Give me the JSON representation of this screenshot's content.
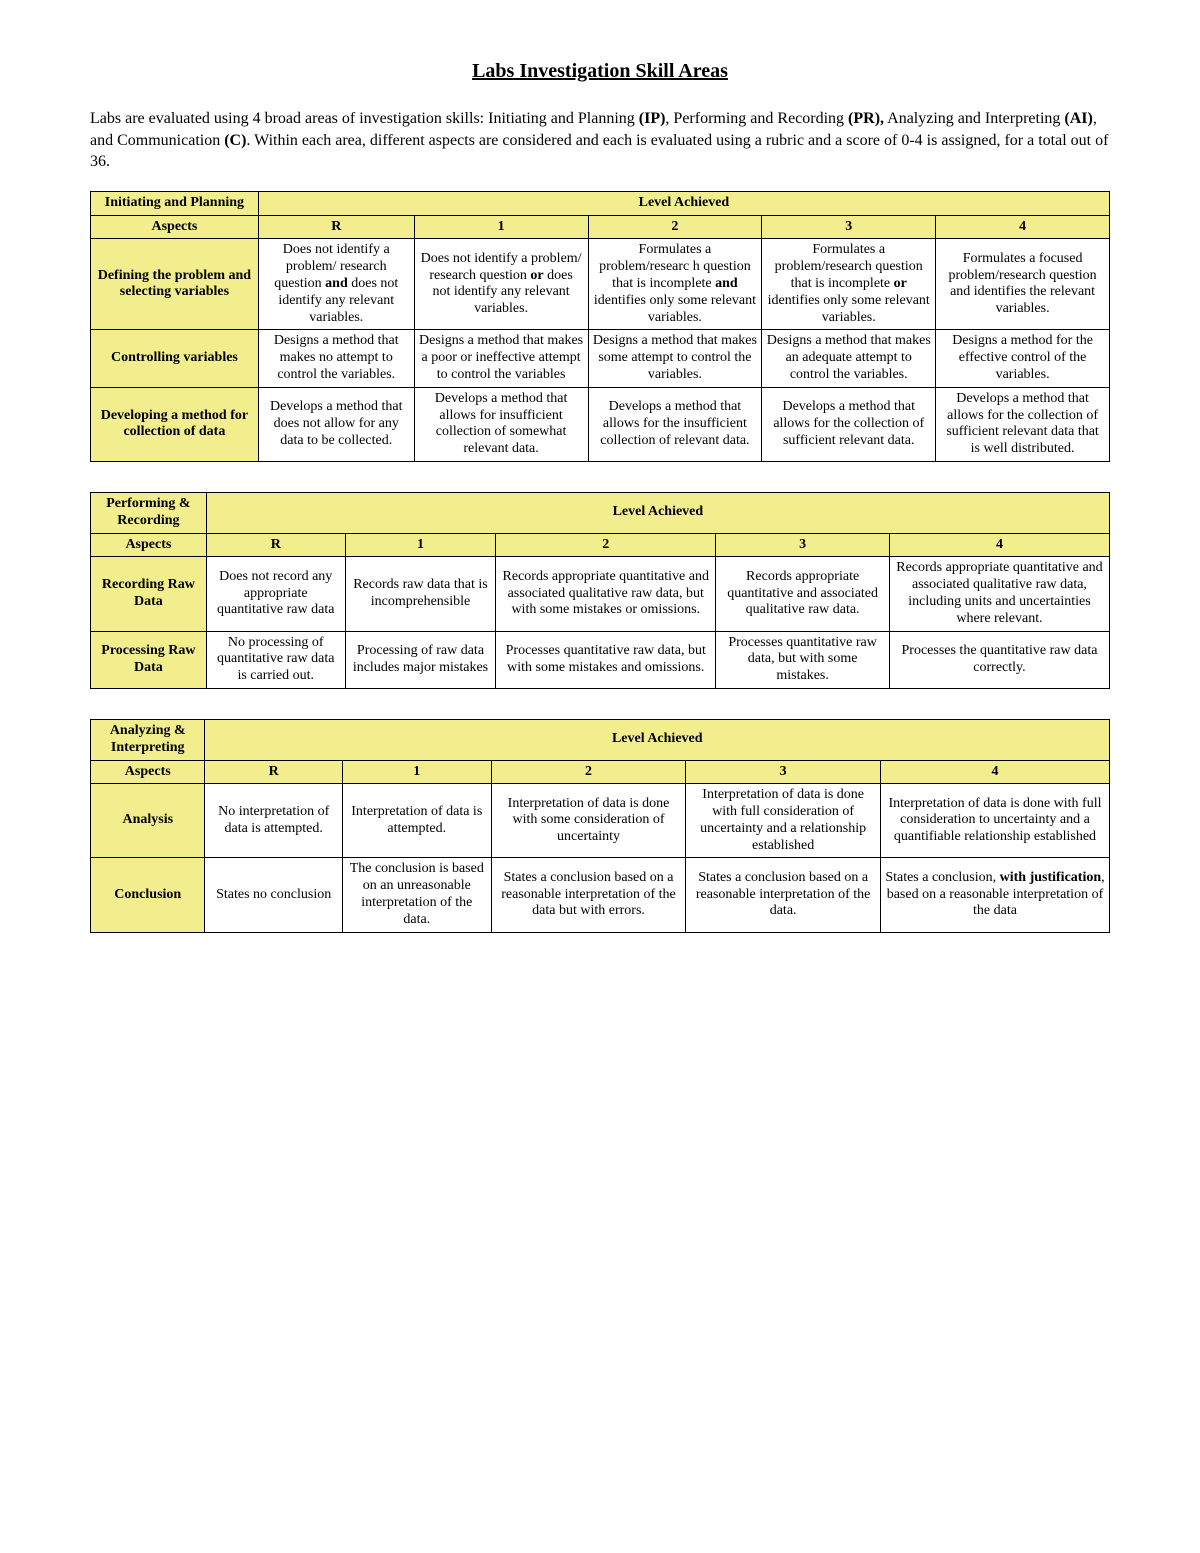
{
  "title": "Labs Investigation Skill Areas",
  "intro_html": "Labs are evaluated using 4 broad areas of investigation skills: Initiating and Planning <b>(IP)</b>, Performing and Recording <b>(PR),</b> Analyzing and Interpreting <b>(AI)</b>, and Communication <b>(C)</b>. Within each area, different aspects are considered and each is evaluated using a rubric and a score of 0-4 is assigned, for a total out of 36.",
  "colors": {
    "header_bg": "#f2ee8d",
    "border": "#000000",
    "page_bg": "#ffffff",
    "text": "#000000"
  },
  "tables": [
    {
      "category": "Initiating and Planning",
      "level_header": "Level Achieved",
      "aspects_label": "Aspects",
      "col_widths_pct": [
        14,
        13,
        14.5,
        14.5,
        14.5,
        14.5
      ],
      "levels": [
        "R",
        "1",
        "2",
        "3",
        "4"
      ],
      "rows": [
        {
          "aspect": "Defining the problem and selecting variables",
          "cells": [
            "Does not identify a problem/ research question <b>and</b> does not identify any relevant variables.",
            "Does not identify a problem/ research question <b>or</b> does not identify any relevant variables.",
            "Formulates a problem/researc h question that is incomplete <b>and</b> identifies only some relevant variables.",
            "Formulates a problem/research question that is incomplete <b>or</b> identifies only some relevant variables.",
            "Formulates a focused problem/research question and identifies the relevant variables."
          ]
        },
        {
          "aspect": "Controlling variables",
          "cells": [
            "Designs a method that makes no attempt to control the variables.",
            "Designs a method that makes a poor or ineffective attempt to control the variables",
            "Designs a method that makes some attempt to control the variables.",
            "Designs a method that makes an adequate attempt to control the variables.",
            "Designs a method for the effective control of the variables."
          ]
        },
        {
          "aspect": "Developing a method for collection of data",
          "cells": [
            "Develops a method that does not allow for any data to be collected.",
            "Develops a method that allows for insufficient collection of somewhat relevant data.",
            "Develops a method that allows for the insufficient collection of relevant data.",
            "Develops a method that allows for the collection of sufficient relevant data.",
            "Develops a method that allows for the collection of sufficient relevant data that is well distributed."
          ]
        }
      ]
    },
    {
      "category": "Performing & Recording",
      "level_header": "Level Achieved",
      "aspects_label": "Aspects",
      "col_widths_pct": [
        10,
        12,
        13,
        19,
        15,
        19
      ],
      "levels": [
        "R",
        "1",
        "2",
        "3",
        "4"
      ],
      "rows": [
        {
          "aspect": "Recording Raw Data",
          "cells": [
            "Does not record any appropriate quantitative raw data",
            "Records raw data that is incomprehensible",
            "Records appropriate quantitative and associated qualitative raw data, but with some mistakes or omissions.",
            "Records appropriate quantitative and associated qualitative raw data.",
            "Records appropriate quantitative and associated qualitative raw data, including units and uncertainties where relevant."
          ]
        },
        {
          "aspect": "Processing Raw Data",
          "cells": [
            "No processing of quantitative raw data is carried out.",
            "Processing of raw data includes major mistakes",
            "Processes quantitative raw data, but with some mistakes and omissions.",
            "Processes quantitative raw data, but with some mistakes.",
            "Processes the quantitative raw data correctly."
          ]
        }
      ]
    },
    {
      "category": "Analyzing & Interpreting",
      "level_header": "Level Achieved",
      "aspects_label": "Aspects",
      "col_widths_pct": [
        10,
        12,
        13,
        17,
        17,
        20
      ],
      "levels": [
        "R",
        "1",
        "2",
        "3",
        "4"
      ],
      "rows": [
        {
          "aspect": "Analysis",
          "cells": [
            "No interpretation of data is attempted.",
            "Interpretation of data is attempted.",
            "Interpretation of data is done with some consideration of uncertainty",
            "Interpretation of data is done with full consideration of uncertainty and a relationship established",
            "Interpretation of data is done with full consideration to uncertainty and a quantifiable relationship established"
          ]
        },
        {
          "aspect": "Conclusion",
          "cells": [
            "States no conclusion",
            "The conclusion is based on an unreasonable interpretation of the data.",
            "States a conclusion based on a reasonable interpretation of the data but with errors.",
            "States a conclusion based on a reasonable interpretation of the data.",
            "States a conclusion, <b>with justification</b>, based on a reasonable interpretation of the data"
          ]
        }
      ]
    }
  ]
}
